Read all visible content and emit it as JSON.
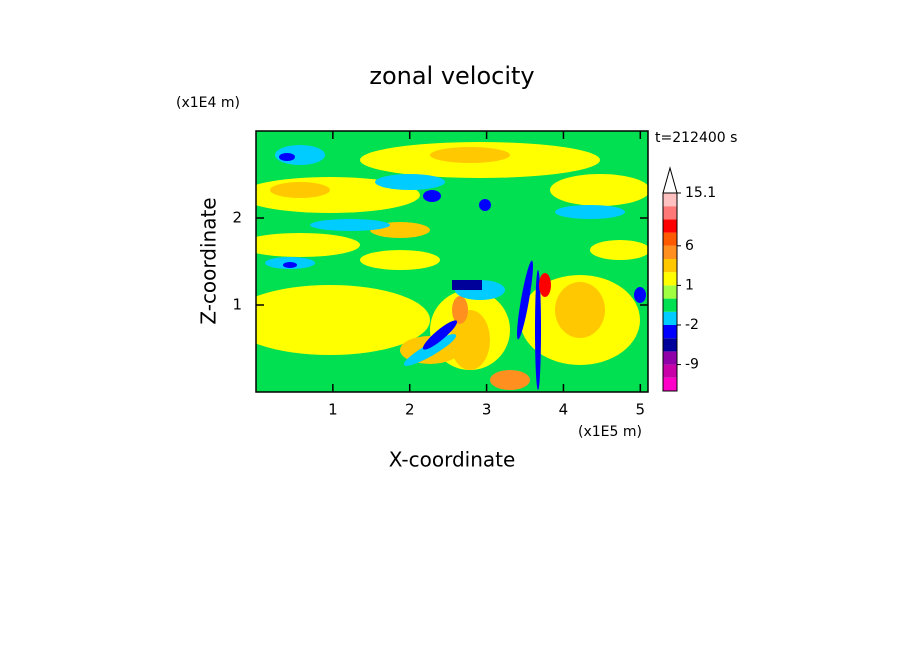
{
  "chart_data": {
    "type": "contour",
    "title": "zonal velocity",
    "x_label": "X-coordinate",
    "y_label": "Z-coordinate",
    "x_unit": "(x1E5 m)",
    "y_unit": "(x1E4 m)",
    "annotation": "t=212400 s",
    "xlim": [
      0,
      5.1
    ],
    "xticks": [
      1,
      2,
      3,
      4,
      5
    ],
    "ylim": [
      0,
      3
    ],
    "yticks": [
      1,
      2
    ],
    "colorbar": {
      "levels": [
        -15,
        -12,
        -9,
        -6,
        -4,
        -2,
        -1,
        0,
        1,
        2,
        4,
        6,
        9,
        12,
        13.5,
        15.1
      ],
      "colors": [
        "#ff00c8",
        "#c800a8",
        "#9000a8",
        "#00009a",
        "#0000ff",
        "#00ccff",
        "#00e050",
        "#a0ff40",
        "#ffff00",
        "#ffc800",
        "#ff9020",
        "#ff5a00",
        "#ff0000",
        "#ff7878",
        "#ffc0c0"
      ],
      "ticks": [
        15.1,
        6,
        1,
        -2,
        -9
      ]
    }
  }
}
